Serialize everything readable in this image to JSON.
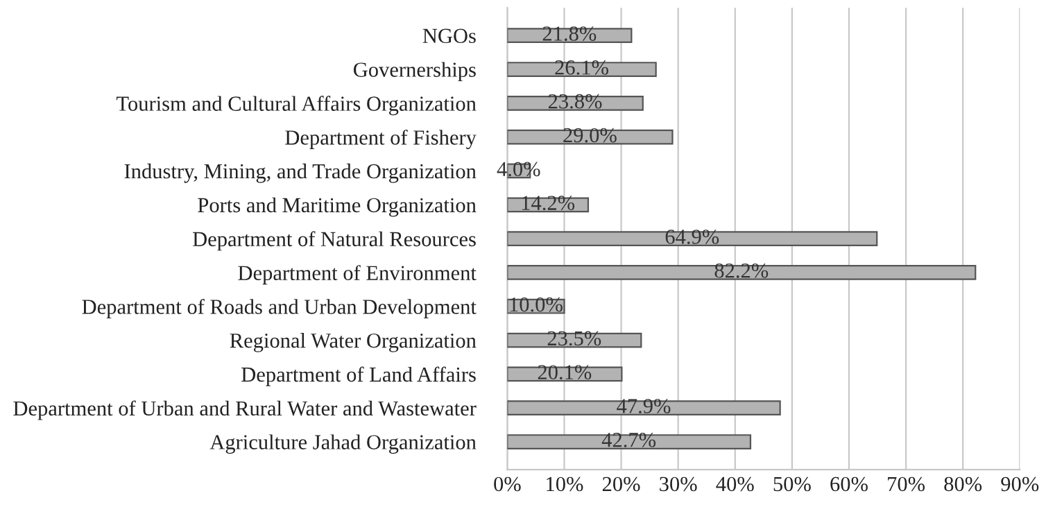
{
  "chart_data": {
    "type": "bar",
    "orientation": "horizontal",
    "categories": [
      "NGOs",
      "Governerships",
      "Tourism and Cultural Affairs Organization",
      "Department of Fishery",
      "Industry, Mining, and Trade Organization",
      "Ports and Maritime Organization",
      "Department of Natural Resources",
      "Department of Environment",
      "Department of Roads and Urban Development",
      "Regional Water Organization",
      "Department of Land Affairs",
      "Department of Urban and Rural Water and Wastewater",
      "Agriculture Jahad Organization"
    ],
    "values": [
      21.8,
      26.1,
      23.8,
      29.0,
      4.0,
      14.2,
      64.9,
      82.2,
      10.0,
      23.5,
      20.1,
      47.9,
      42.7
    ],
    "value_labels": [
      "21.8%",
      "26.1%",
      "23.8%",
      "29.0%",
      "4.0%",
      "14.2%",
      "64.9%",
      "82.2%",
      "10.0%",
      "23.5%",
      "20.1%",
      "47.9%",
      "42.7%"
    ],
    "color": "#b3b3b3",
    "xlim": [
      0,
      90
    ],
    "xticks": [
      {
        "value": 0,
        "label": "0%"
      },
      {
        "value": 10,
        "label": "10%"
      },
      {
        "value": 20,
        "label": "20%"
      },
      {
        "value": 30,
        "label": "30%"
      },
      {
        "value": 40,
        "label": "40%"
      },
      {
        "value": 50,
        "label": "50%"
      },
      {
        "value": 60,
        "label": "60%"
      },
      {
        "value": 70,
        "label": "70%"
      },
      {
        "value": 80,
        "label": "80%"
      },
      {
        "value": 90,
        "label": "90%"
      }
    ],
    "grid": "x"
  }
}
